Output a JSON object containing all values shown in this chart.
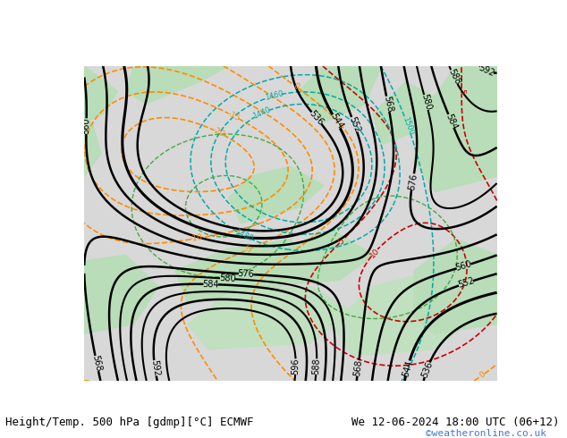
{
  "title_left": "Height/Temp. 500 hPa [gdmp][°C] ECMWF",
  "title_right": "We 12-06-2024 18:00 UTC (06+12)",
  "watermark": "©weatheronline.co.uk",
  "bg_color": "#d0d0d0",
  "land_color_light": "#c8e6c8",
  "land_color_medium": "#a8d4a8",
  "sea_color": "#e8e8e8",
  "title_bg": "#ffffff",
  "title_font_size": 9,
  "watermark_color": "#4477cc",
  "bottom_bar_color": "#ffffff"
}
